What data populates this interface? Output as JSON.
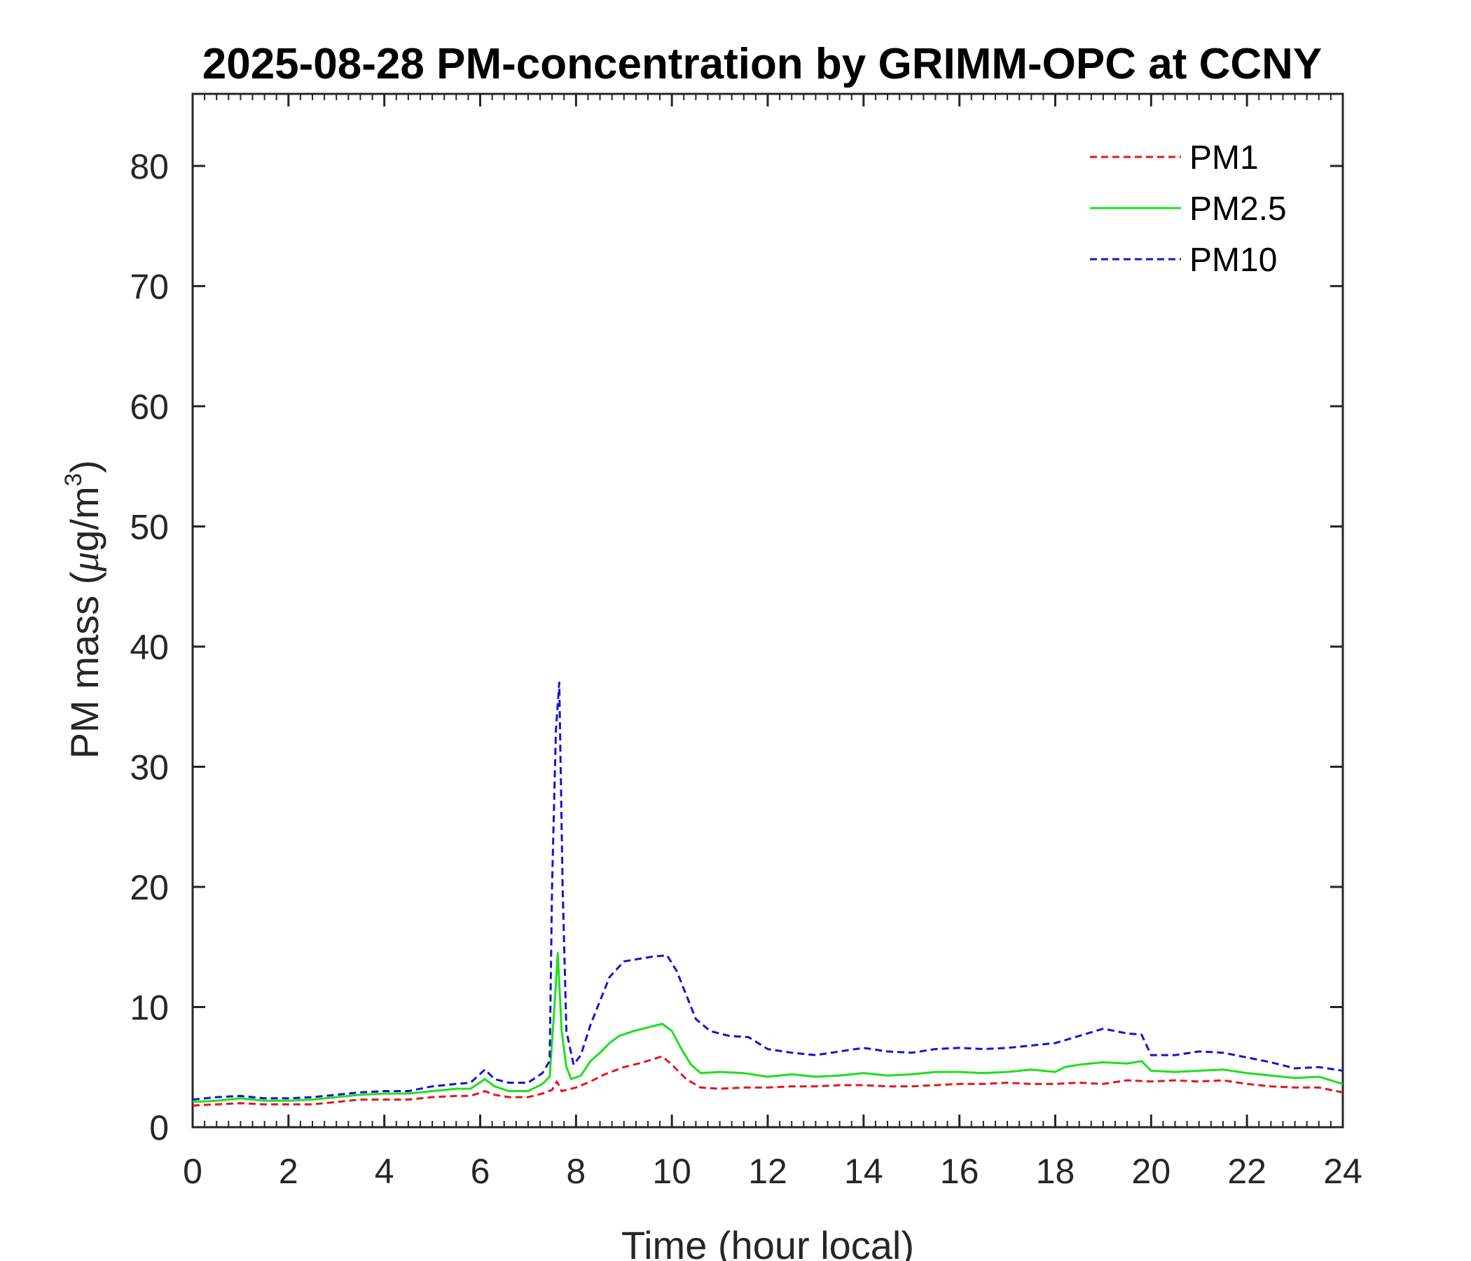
{
  "chart_data": {
    "type": "line",
    "title": "2025-08-28 PM-concentration by GRIMM-OPC at CCNY",
    "xlabel": "Time (hour local)",
    "ylabel_main": "PM mass (",
    "ylabel_mu": "μ",
    "ylabel_unit": "g/m",
    "ylabel_sup": "3",
    "ylabel_close": ")",
    "xlim": [
      0,
      24
    ],
    "ylim": [
      0,
      86
    ],
    "xticks": [
      0,
      2,
      4,
      6,
      8,
      10,
      12,
      14,
      16,
      18,
      20,
      22,
      24
    ],
    "yticks": [
      0,
      10,
      20,
      30,
      40,
      50,
      60,
      70,
      80
    ],
    "xtick_labels": [
      "0",
      "2",
      "4",
      "6",
      "8",
      "10",
      "12",
      "14",
      "16",
      "18",
      "20",
      "22",
      "24"
    ],
    "ytick_labels": [
      "0",
      "10",
      "20",
      "30",
      "40",
      "50",
      "60",
      "70",
      "80"
    ],
    "grid": false,
    "legend_position": "top-right",
    "series": [
      {
        "name": "PM1",
        "color": "#e8141e",
        "dash": "dashed",
        "points": [
          [
            0,
            1.8
          ],
          [
            0.5,
            1.9
          ],
          [
            1,
            2.0
          ],
          [
            1.5,
            1.9
          ],
          [
            2,
            1.9
          ],
          [
            2.5,
            1.9
          ],
          [
            3,
            2.1
          ],
          [
            3.5,
            2.3
          ],
          [
            4,
            2.3
          ],
          [
            4.5,
            2.3
          ],
          [
            5,
            2.5
          ],
          [
            5.5,
            2.6
          ],
          [
            5.8,
            2.6
          ],
          [
            6.1,
            3.0
          ],
          [
            6.3,
            2.7
          ],
          [
            6.6,
            2.5
          ],
          [
            7,
            2.5
          ],
          [
            7.3,
            2.8
          ],
          [
            7.5,
            3.1
          ],
          [
            7.6,
            3.8
          ],
          [
            7.7,
            3.0
          ],
          [
            8,
            3.3
          ],
          [
            8.3,
            3.8
          ],
          [
            8.6,
            4.4
          ],
          [
            9,
            5.0
          ],
          [
            9.4,
            5.4
          ],
          [
            9.8,
            5.9
          ],
          [
            10,
            5.2
          ],
          [
            10.3,
            4.0
          ],
          [
            10.6,
            3.3
          ],
          [
            11,
            3.2
          ],
          [
            11.5,
            3.3
          ],
          [
            12,
            3.3
          ],
          [
            12.5,
            3.4
          ],
          [
            13,
            3.4
          ],
          [
            13.5,
            3.5
          ],
          [
            14,
            3.5
          ],
          [
            14.5,
            3.4
          ],
          [
            15,
            3.4
          ],
          [
            15.5,
            3.5
          ],
          [
            16,
            3.6
          ],
          [
            16.5,
            3.6
          ],
          [
            17,
            3.7
          ],
          [
            17.5,
            3.6
          ],
          [
            18,
            3.6
          ],
          [
            18.5,
            3.7
          ],
          [
            19,
            3.6
          ],
          [
            19.5,
            3.9
          ],
          [
            20,
            3.8
          ],
          [
            20.5,
            3.9
          ],
          [
            21,
            3.8
          ],
          [
            21.5,
            3.9
          ],
          [
            22,
            3.6
          ],
          [
            22.5,
            3.4
          ],
          [
            23,
            3.3
          ],
          [
            23.5,
            3.3
          ],
          [
            24,
            2.9
          ]
        ]
      },
      {
        "name": "PM2.5",
        "color": "#1ee01e",
        "dash": "solid",
        "points": [
          [
            0,
            2.1
          ],
          [
            0.5,
            2.2
          ],
          [
            1,
            2.4
          ],
          [
            1.5,
            2.2
          ],
          [
            2,
            2.2
          ],
          [
            2.5,
            2.3
          ],
          [
            3,
            2.5
          ],
          [
            3.5,
            2.7
          ],
          [
            4,
            2.8
          ],
          [
            4.5,
            2.8
          ],
          [
            5,
            3.0
          ],
          [
            5.5,
            3.2
          ],
          [
            5.8,
            3.2
          ],
          [
            6.1,
            4.0
          ],
          [
            6.3,
            3.4
          ],
          [
            6.6,
            3.0
          ],
          [
            7,
            3.0
          ],
          [
            7.3,
            3.6
          ],
          [
            7.45,
            4.2
          ],
          [
            7.55,
            10.0
          ],
          [
            7.62,
            14.5
          ],
          [
            7.7,
            8.0
          ],
          [
            7.8,
            5.0
          ],
          [
            7.9,
            4.0
          ],
          [
            8.1,
            4.3
          ],
          [
            8.3,
            5.5
          ],
          [
            8.5,
            6.2
          ],
          [
            8.7,
            7.0
          ],
          [
            8.9,
            7.6
          ],
          [
            9.2,
            8.0
          ],
          [
            9.5,
            8.3
          ],
          [
            9.8,
            8.6
          ],
          [
            10,
            8.0
          ],
          [
            10.2,
            6.5
          ],
          [
            10.4,
            5.2
          ],
          [
            10.6,
            4.5
          ],
          [
            11,
            4.6
          ],
          [
            11.5,
            4.5
          ],
          [
            12,
            4.2
          ],
          [
            12.5,
            4.4
          ],
          [
            13,
            4.2
          ],
          [
            13.5,
            4.3
          ],
          [
            14,
            4.5
          ],
          [
            14.5,
            4.3
          ],
          [
            15,
            4.4
          ],
          [
            15.5,
            4.6
          ],
          [
            16,
            4.6
          ],
          [
            16.5,
            4.5
          ],
          [
            17,
            4.6
          ],
          [
            17.5,
            4.8
          ],
          [
            18,
            4.6
          ],
          [
            18.2,
            5.0
          ],
          [
            18.5,
            5.2
          ],
          [
            19,
            5.4
          ],
          [
            19.5,
            5.3
          ],
          [
            19.8,
            5.5
          ],
          [
            20,
            4.7
          ],
          [
            20.5,
            4.6
          ],
          [
            21,
            4.7
          ],
          [
            21.5,
            4.8
          ],
          [
            22,
            4.5
          ],
          [
            22.5,
            4.3
          ],
          [
            23,
            4.1
          ],
          [
            23.5,
            4.2
          ],
          [
            24,
            3.6
          ]
        ]
      },
      {
        "name": "PM10",
        "color": "#1414d2",
        "dash": "dashed",
        "points": [
          [
            0,
            2.3
          ],
          [
            0.5,
            2.5
          ],
          [
            1,
            2.6
          ],
          [
            1.5,
            2.4
          ],
          [
            2,
            2.4
          ],
          [
            2.5,
            2.5
          ],
          [
            3,
            2.7
          ],
          [
            3.5,
            2.9
          ],
          [
            4,
            3.0
          ],
          [
            4.5,
            3.0
          ],
          [
            5,
            3.4
          ],
          [
            5.5,
            3.6
          ],
          [
            5.8,
            3.7
          ],
          [
            6.1,
            4.8
          ],
          [
            6.3,
            4.0
          ],
          [
            6.6,
            3.7
          ],
          [
            7,
            3.7
          ],
          [
            7.3,
            4.5
          ],
          [
            7.45,
            5.5
          ],
          [
            7.5,
            20.0
          ],
          [
            7.58,
            33.0
          ],
          [
            7.65,
            37.0
          ],
          [
            7.72,
            20.0
          ],
          [
            7.8,
            8.0
          ],
          [
            7.95,
            5.2
          ],
          [
            8.1,
            6.0
          ],
          [
            8.3,
            8.5
          ],
          [
            8.5,
            10.5
          ],
          [
            8.7,
            12.5
          ],
          [
            9,
            13.8
          ],
          [
            9.3,
            14.0
          ],
          [
            9.6,
            14.2
          ],
          [
            9.9,
            14.3
          ],
          [
            10.1,
            13.0
          ],
          [
            10.3,
            11.0
          ],
          [
            10.5,
            9.0
          ],
          [
            10.8,
            8.0
          ],
          [
            11.2,
            7.6
          ],
          [
            11.6,
            7.5
          ],
          [
            12,
            6.5
          ],
          [
            12.5,
            6.2
          ],
          [
            13,
            6.0
          ],
          [
            13.5,
            6.3
          ],
          [
            14,
            6.6
          ],
          [
            14.5,
            6.3
          ],
          [
            15,
            6.2
          ],
          [
            15.5,
            6.5
          ],
          [
            16,
            6.6
          ],
          [
            16.5,
            6.5
          ],
          [
            17,
            6.6
          ],
          [
            17.5,
            6.8
          ],
          [
            18,
            7.0
          ],
          [
            18.5,
            7.6
          ],
          [
            19,
            8.2
          ],
          [
            19.5,
            7.8
          ],
          [
            19.8,
            7.7
          ],
          [
            20,
            6.0
          ],
          [
            20.5,
            6.0
          ],
          [
            21,
            6.3
          ],
          [
            21.5,
            6.2
          ],
          [
            22,
            5.8
          ],
          [
            22.5,
            5.4
          ],
          [
            23,
            4.9
          ],
          [
            23.5,
            5.0
          ],
          [
            24,
            4.7
          ]
        ]
      }
    ]
  }
}
